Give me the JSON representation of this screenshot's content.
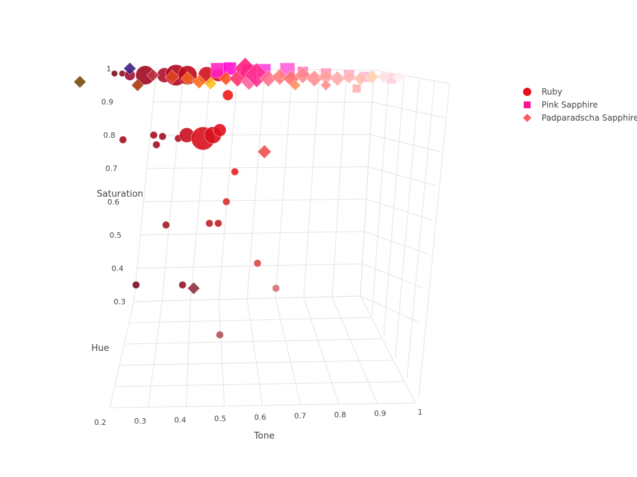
{
  "chart_data": {
    "type": "scatter3d",
    "axes": {
      "x": {
        "title": "Tone",
        "range": [
          0.2,
          1
        ],
        "ticks": [
          "0.2",
          "0.3",
          "0.4",
          "0.5",
          "0.6",
          "0.7",
          "0.8",
          "0.9",
          "1"
        ]
      },
      "y": {
        "title": "Hue",
        "ticks": []
      },
      "z": {
        "title": "Saturation",
        "range": [
          0.3,
          1
        ],
        "ticks": [
          "0.3",
          "0.4",
          "0.5",
          "0.6",
          "0.7",
          "0.8",
          "0.9",
          "1"
        ]
      }
    },
    "grid": true,
    "legend_position": "top-right",
    "series": [
      {
        "name": "Ruby",
        "symbol": "circle",
        "color": "#e8101e",
        "points": [
          [
            0.252,
            0.786,
            7,
            "#a01020"
          ],
          [
            0.332,
            0.8,
            7,
            "#a01020"
          ],
          [
            0.355,
            0.796,
            7,
            "#a01020"
          ],
          [
            0.339,
            0.771,
            7,
            "#a01020"
          ],
          [
            0.396,
            0.79,
            7,
            "#b01020"
          ],
          [
            0.418,
            0.8,
            14,
            "#c8101e"
          ],
          [
            0.46,
            0.79,
            22,
            "#d8101e"
          ],
          [
            0.486,
            0.8,
            16,
            "#d8101e"
          ],
          [
            0.504,
            0.815,
            12,
            "#e0101e"
          ],
          [
            0.525,
            0.92,
            10,
            "#f01818"
          ],
          [
            0.543,
            0.69,
            7,
            "#e82020"
          ],
          [
            0.521,
            0.6,
            7,
            "#d83030"
          ],
          [
            0.364,
            0.53,
            7,
            "#a01822"
          ],
          [
            0.477,
            0.535,
            7,
            "#c02028"
          ],
          [
            0.5,
            0.535,
            7,
            "#c02028"
          ],
          [
            0.602,
            0.415,
            7,
            "#d84848"
          ],
          [
            0.65,
            0.34,
            7,
            "#d07078"
          ],
          [
            0.286,
            0.35,
            7,
            "#7a1020"
          ],
          [
            0.407,
            0.35,
            7,
            "#901828"
          ],
          [
            0.504,
            0.2,
            7,
            "#b05058"
          ],
          [
            0.23,
            0.985,
            6,
            "#7a1020"
          ],
          [
            0.25,
            0.985,
            6,
            "#8a1020"
          ],
          [
            0.27,
            0.98,
            10,
            "#a01030"
          ],
          [
            0.31,
            0.98,
            18,
            "#a0081e"
          ],
          [
            0.36,
            0.98,
            14,
            "#b0102a"
          ],
          [
            0.39,
            0.98,
            20,
            "#b0081e"
          ],
          [
            0.42,
            0.98,
            18,
            "#c0081e"
          ],
          [
            0.47,
            0.98,
            16,
            "#d0101e"
          ],
          [
            0.5,
            0.98,
            12,
            "#e0101e"
          ]
        ]
      },
      {
        "name": "Pink Sapphire",
        "symbol": "square",
        "color": "#ff1493",
        "points": [
          [
            0.5,
            0.995,
            14,
            "#ff20c0"
          ],
          [
            0.53,
            1.0,
            12,
            "#ff10d0"
          ],
          [
            0.58,
            0.99,
            14,
            "#ff30b0"
          ],
          [
            0.62,
            0.995,
            12,
            "#ff40e0"
          ],
          [
            0.68,
            0.995,
            14,
            "#ff60d8"
          ],
          [
            0.72,
            0.99,
            10,
            "#ff70c0"
          ],
          [
            0.78,
            0.985,
            10,
            "#ff90b8"
          ],
          [
            0.84,
            0.98,
            10,
            "#ffa0c8"
          ],
          [
            0.88,
            0.975,
            10,
            "#ffb0d8"
          ],
          [
            0.95,
            0.97,
            10,
            "#ffd0e0"
          ],
          [
            0.86,
            0.94,
            8,
            "#ffb0b0"
          ]
        ]
      },
      {
        "name": "Padparadscha Sapphire",
        "symbol": "diamond",
        "color": "#ff5a5a",
        "points": [
          [
            0.14,
            0.96,
            9,
            "#7a4a10"
          ],
          [
            0.29,
            0.95,
            9,
            "#a83810"
          ],
          [
            0.27,
            1.0,
            9,
            "#402080"
          ],
          [
            0.33,
            0.98,
            9,
            "#c03040"
          ],
          [
            0.38,
            0.975,
            10,
            "#e04020"
          ],
          [
            0.42,
            0.97,
            10,
            "#f06020"
          ],
          [
            0.45,
            0.96,
            10,
            "#ff7020"
          ],
          [
            0.48,
            0.955,
            9,
            "#ffc020"
          ],
          [
            0.52,
            0.97,
            10,
            "#ff5020"
          ],
          [
            0.55,
            0.97,
            12,
            "#ff3070"
          ],
          [
            0.57,
            1.0,
            16,
            "#ff2080"
          ],
          [
            0.58,
            0.96,
            12,
            "#ff60a0"
          ],
          [
            0.6,
            0.98,
            18,
            "#ff3090"
          ],
          [
            0.63,
            0.97,
            12,
            "#ff7090"
          ],
          [
            0.66,
            0.975,
            12,
            "#ff8080"
          ],
          [
            0.69,
            0.97,
            12,
            "#ff7070"
          ],
          [
            0.72,
            0.98,
            12,
            "#ff8a8a"
          ],
          [
            0.75,
            0.97,
            12,
            "#ff9090"
          ],
          [
            0.78,
            0.975,
            11,
            "#ffa0a0"
          ],
          [
            0.81,
            0.97,
            11,
            "#ffaaaa"
          ],
          [
            0.84,
            0.975,
            10,
            "#ffb8b8"
          ],
          [
            0.87,
            0.97,
            10,
            "#ffc0b0"
          ],
          [
            0.9,
            0.975,
            10,
            "#ffd0b0"
          ],
          [
            0.93,
            0.975,
            9,
            "#ffe0e0"
          ],
          [
            0.97,
            0.975,
            9,
            "#fff0f0"
          ],
          [
            0.7,
            0.95,
            8,
            "#ff9060"
          ],
          [
            0.78,
            0.95,
            8,
            "#ff9090"
          ],
          [
            0.62,
            0.75,
            10,
            "#f05050"
          ],
          [
            0.436,
            0.34,
            9,
            "#903040"
          ]
        ]
      }
    ]
  }
}
